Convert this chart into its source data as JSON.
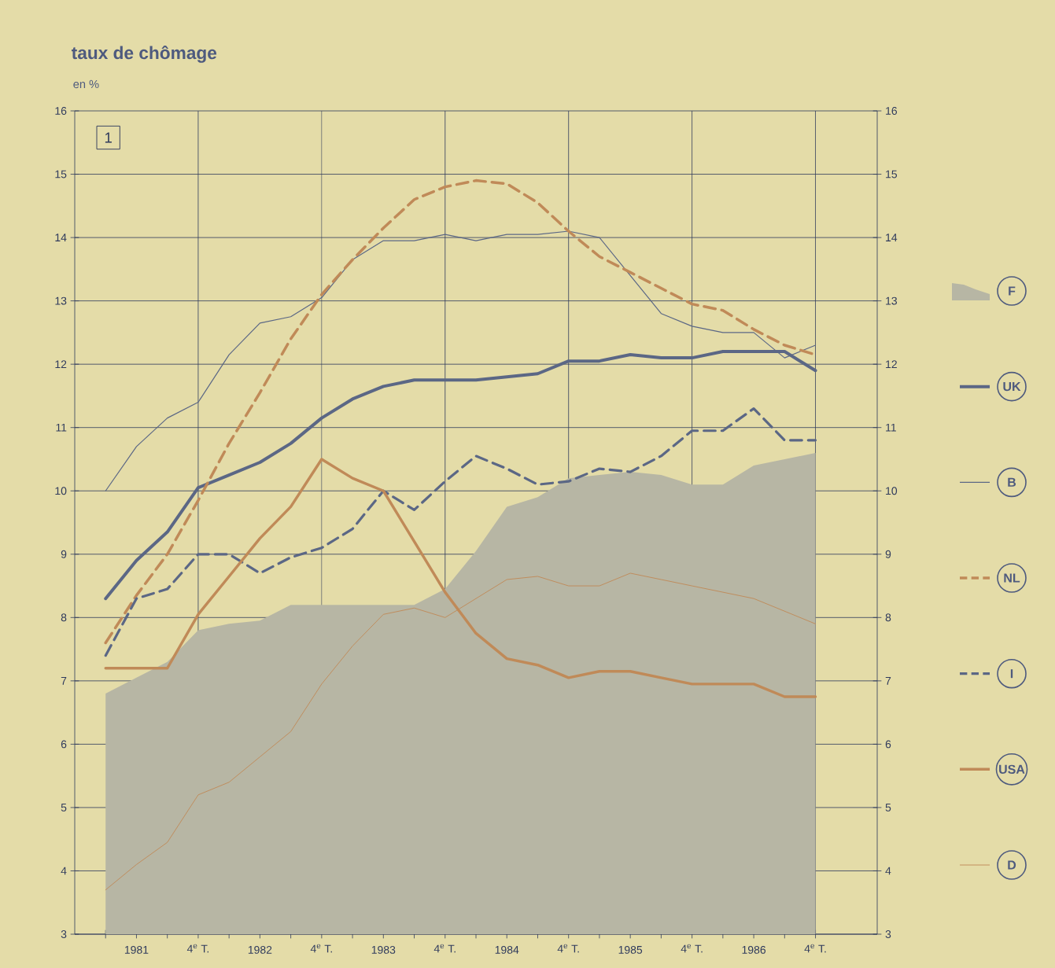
{
  "chart_data": {
    "type": "line",
    "title": "taux de chômage",
    "ylabel": "en %",
    "annotations": [
      "1"
    ],
    "categories": [
      null,
      "1981",
      null,
      "4$^{e}$ T.",
      null,
      "1982",
      null,
      "4$^{e}$ T.",
      null,
      "1983",
      null,
      "4$^{e}$ T.",
      null,
      "1984",
      null,
      "4$^{e}$ T.",
      null,
      "1985",
      null,
      "4$^{e}$ T.",
      null,
      "1986",
      null,
      "4$^{e}$ T."
    ],
    "ylim": [
      3,
      16
    ],
    "yticks": [
      3,
      4,
      5,
      6,
      7,
      8,
      9,
      10,
      11,
      12,
      13,
      14,
      15,
      16
    ],
    "y2lim": [
      3,
      16
    ],
    "y2ticks": [
      3,
      4,
      5,
      6,
      7,
      8,
      9,
      10,
      11,
      12,
      13,
      14,
      15,
      16
    ],
    "grid": true,
    "legend": "right",
    "series": [
      {
        "name": "F",
        "type": "area",
        "color": "#b7b6a4",
        "values": [
          6.8,
          7.05,
          7.3,
          7.8,
          7.9,
          7.95,
          8.2,
          8.2,
          8.2,
          8.2,
          8.2,
          8.45,
          9.05,
          9.75,
          9.9,
          10.2,
          10.25,
          10.3,
          10.25,
          10.1,
          10.1,
          10.4,
          10.5,
          10.6
        ]
      },
      {
        "name": "UK",
        "color": "#5b6785",
        "line_style": "solid",
        "values": [
          8.3,
          8.9,
          9.35,
          10.05,
          10.25,
          10.45,
          10.75,
          11.15,
          11.45,
          11.65,
          11.75,
          11.75,
          11.75,
          11.8,
          11.85,
          12.05,
          12.05,
          12.15,
          12.1,
          12.1,
          12.2,
          12.2,
          12.2,
          11.9
        ]
      },
      {
        "name": "B",
        "color": "#5b6785",
        "line_style": "solid",
        "values": [
          10.0,
          10.7,
          11.15,
          11.4,
          12.15,
          12.65,
          12.75,
          13.05,
          13.65,
          13.95,
          13.95,
          14.05,
          13.95,
          14.05,
          14.05,
          14.1,
          14.0,
          13.4,
          12.8,
          12.6,
          12.5,
          12.5,
          12.1,
          12.3
        ]
      },
      {
        "name": "NL",
        "color": "#c08a58",
        "line_style": "dashed",
        "values": [
          7.6,
          8.35,
          9.0,
          9.85,
          10.75,
          11.55,
          12.4,
          13.1,
          13.65,
          14.15,
          14.6,
          14.8,
          14.9,
          14.85,
          14.55,
          14.1,
          13.7,
          13.45,
          13.2,
          12.95,
          12.85,
          12.55,
          12.3,
          12.15
        ]
      },
      {
        "name": "I",
        "color": "#5b6785",
        "line_style": "dashed",
        "values": [
          7.4,
          8.3,
          8.45,
          9.0,
          9.0,
          8.7,
          8.95,
          9.1,
          9.4,
          10.0,
          9.7,
          10.15,
          10.55,
          10.35,
          10.1,
          10.15,
          10.35,
          10.3,
          10.55,
          10.95,
          10.95,
          11.3,
          10.8,
          10.8
        ]
      },
      {
        "name": "USA",
        "color": "#c08a58",
        "line_style": "solid",
        "values": [
          7.2,
          7.2,
          7.2,
          8.05,
          8.65,
          9.25,
          9.75,
          10.5,
          10.2,
          10.0,
          9.2,
          8.4,
          7.75,
          7.35,
          7.25,
          7.05,
          7.15,
          7.15,
          7.05,
          6.95,
          6.95,
          6.95,
          6.75,
          6.75
        ]
      },
      {
        "name": "D",
        "color": "#c08a58",
        "line_style": "solid",
        "values": [
          3.7,
          4.1,
          4.45,
          5.2,
          5.4,
          5.8,
          6.2,
          6.95,
          7.55,
          8.05,
          8.15,
          8.0,
          8.3,
          8.6,
          8.65,
          8.5,
          8.5,
          8.7,
          8.6,
          8.5,
          8.4,
          8.3,
          8.1,
          7.9
        ]
      }
    ]
  }
}
